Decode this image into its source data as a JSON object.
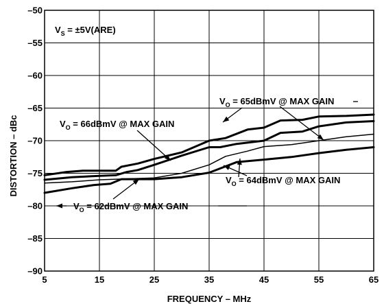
{
  "chart_data": {
    "type": "line",
    "xlabel": "FREQUENCY – MHz",
    "ylabel": "DISTORTION – dBc",
    "xlim": [
      5,
      65
    ],
    "ylim": [
      -90,
      -50
    ],
    "xticks": [
      5,
      15,
      25,
      35,
      45,
      55,
      65
    ],
    "yticks": [
      -90,
      -85,
      -80,
      -75,
      -70,
      -65,
      -60,
      -55,
      -50
    ],
    "xtick_labels": [
      "5",
      "15",
      "25",
      "35",
      "45",
      "55",
      "65"
    ],
    "ytick_labels": [
      "–90",
      "–85",
      "–80",
      "–75",
      "–70",
      "–65",
      "–60",
      "–55",
      "–50"
    ],
    "grid": true,
    "condition": {
      "prefix": "V",
      "sub": "S",
      "suffix": " = ±5V(ARE)"
    },
    "annotations": [
      {
        "prefix": "V",
        "sub": "O",
        "suffix": " = 66dBmV @ MAX GAIN",
        "series": 0
      },
      {
        "prefix": "V",
        "sub": "O",
        "suffix": " = 65dBmV @ MAX GAIN",
        "series": 1
      },
      {
        "prefix": "V",
        "sub": "O",
        "suffix": " = 64dBmV @ MAX GAIN",
        "series": 2
      },
      {
        "prefix": "V",
        "sub": "O",
        "suffix": " = 62dBmV @ MAX GAIN",
        "series": 3
      }
    ],
    "series": [
      {
        "x": [
          5,
          9,
          12,
          18,
          19,
          22,
          25,
          30,
          35,
          38,
          42,
          45,
          48,
          52,
          55,
          60,
          65
        ],
        "y": [
          -75.3,
          -74.8,
          -74.6,
          -74.6,
          -74.0,
          -73.5,
          -72.8,
          -71.8,
          -70.0,
          -69.6,
          -68.3,
          -68.0,
          -66.9,
          -66.8,
          -66.3,
          -66.2,
          -66.0
        ],
        "width": 3
      },
      {
        "x": [
          5,
          10,
          15,
          18,
          20,
          22,
          25,
          30,
          35,
          37,
          40,
          45,
          48,
          52,
          55,
          60,
          65
        ],
        "y": [
          -76.0,
          -75.6,
          -75.4,
          -75.3,
          -74.8,
          -74.5,
          -73.7,
          -72.3,
          -71.0,
          -71.0,
          -70.5,
          -70.0,
          -68.8,
          -68.6,
          -67.8,
          -67.2,
          -67.0
        ],
        "width": 3
      },
      {
        "x": [
          5,
          10,
          15,
          25,
          30,
          35,
          38,
          42,
          45,
          50,
          55,
          60,
          65
        ],
        "y": [
          -76.5,
          -76.3,
          -76.0,
          -75.7,
          -75.0,
          -73.7,
          -72.4,
          -71.6,
          -70.9,
          -70.6,
          -70.0,
          -69.4,
          -69.0
        ],
        "width": 1.5
      },
      {
        "x": [
          5,
          10,
          14,
          17,
          19,
          25,
          30,
          35,
          40,
          45,
          50,
          55,
          60,
          65
        ],
        "y": [
          -78.0,
          -77.3,
          -76.8,
          -76.6,
          -75.9,
          -75.9,
          -75.6,
          -74.9,
          -73.3,
          -72.9,
          -72.5,
          -71.9,
          -71.4,
          -71.0
        ],
        "width": 3
      }
    ]
  }
}
